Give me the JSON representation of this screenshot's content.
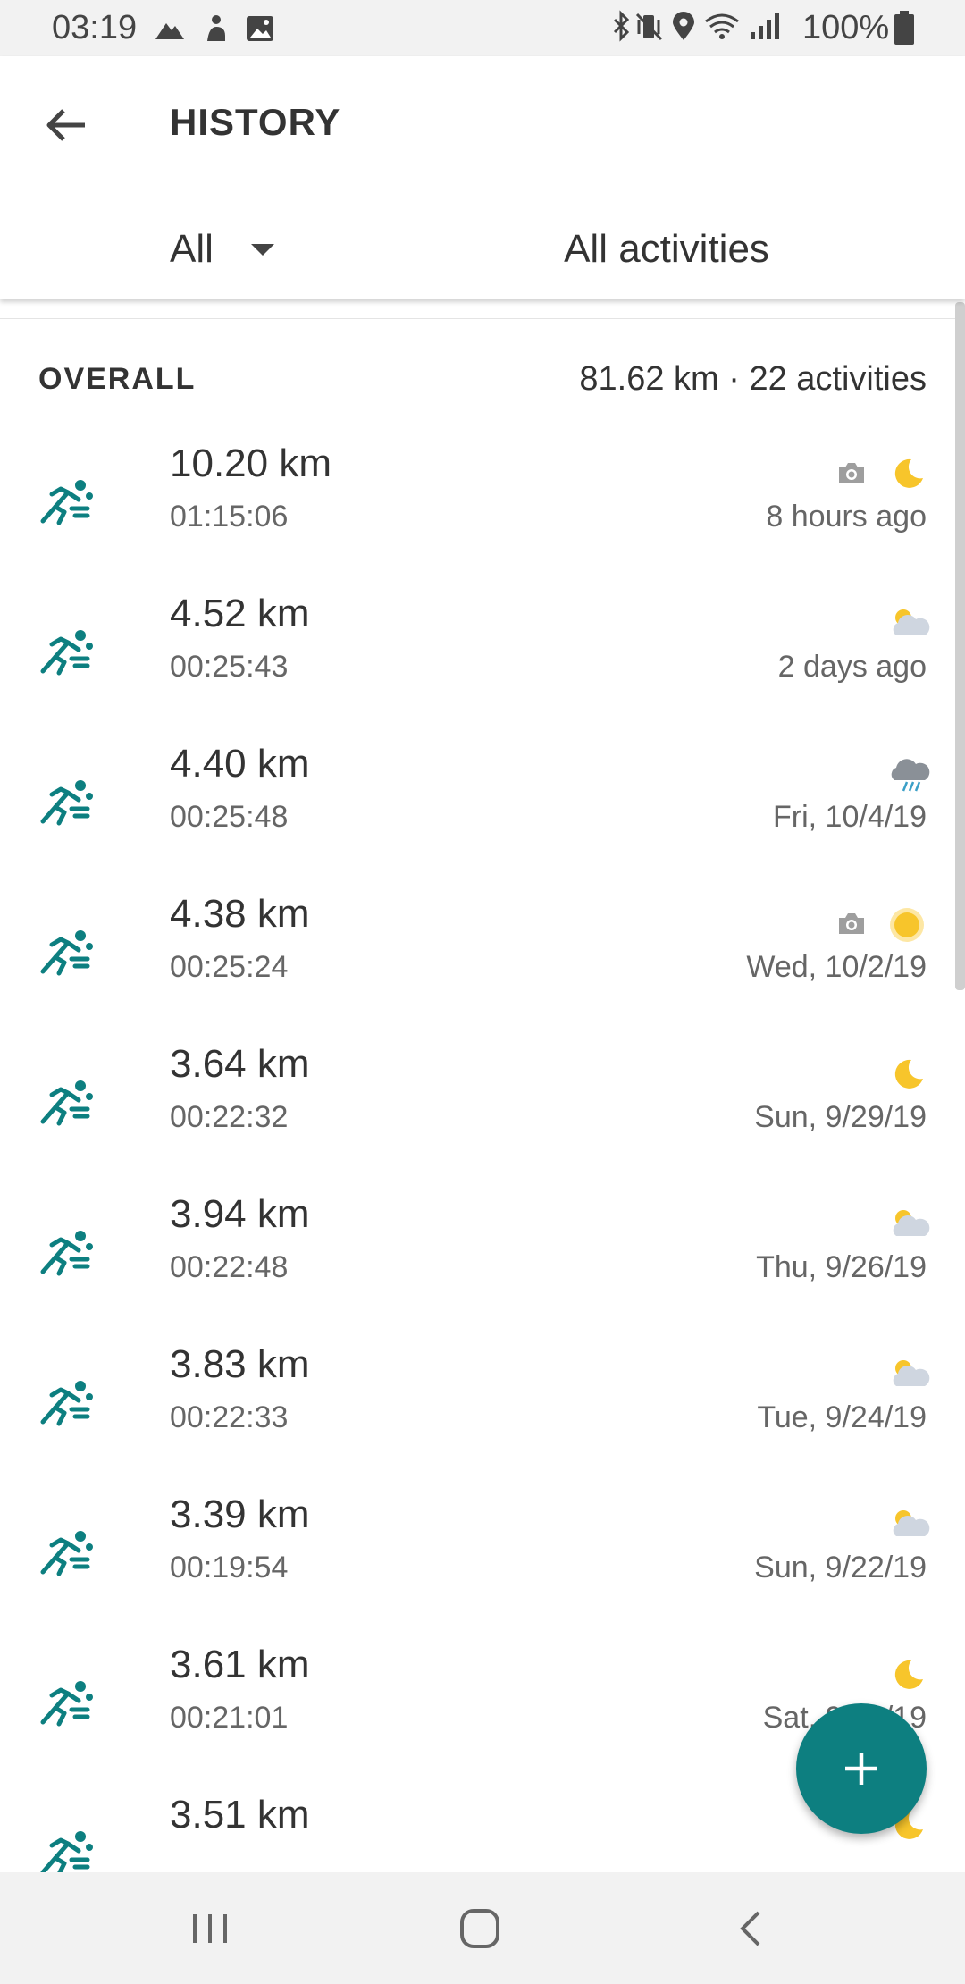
{
  "status_bar": {
    "time": "03:19",
    "battery": "100%",
    "left_icons": [
      "mountain-icon",
      "gesture-icon",
      "image-icon"
    ],
    "right_icons": [
      "bluetooth-icon",
      "vibrate-icon",
      "location-icon",
      "wifi-icon",
      "signal-icon",
      "battery-icon"
    ]
  },
  "header": {
    "title": "HISTORY",
    "back_icon": "arrow-left-icon",
    "period_filter": "All",
    "activity_filter": "All activities"
  },
  "summary": {
    "label": "OVERALL",
    "stats": "81.62 km  ·  22 activities"
  },
  "activities": [
    {
      "distance": "10.20 km",
      "duration": "01:15:06",
      "date": "8 hours ago",
      "camera": true,
      "weather": "moon-icon"
    },
    {
      "distance": "4.52 km",
      "duration": "00:25:43",
      "date": "2 days ago",
      "camera": false,
      "weather": "partly-cloudy-icon"
    },
    {
      "distance": "4.40 km",
      "duration": "00:25:48",
      "date": "Fri, 10/4/19",
      "camera": false,
      "weather": "rain-cloud-icon"
    },
    {
      "distance": "4.38 km",
      "duration": "00:25:24",
      "date": "Wed, 10/2/19",
      "camera": true,
      "weather": "sun-icon"
    },
    {
      "distance": "3.64 km",
      "duration": "00:22:32",
      "date": "Sun, 9/29/19",
      "camera": false,
      "weather": "moon-icon"
    },
    {
      "distance": "3.94 km",
      "duration": "00:22:48",
      "date": "Thu, 9/26/19",
      "camera": false,
      "weather": "partly-cloudy-icon"
    },
    {
      "distance": "3.83 km",
      "duration": "00:22:33",
      "date": "Tue, 9/24/19",
      "camera": false,
      "weather": "partly-cloudy-icon"
    },
    {
      "distance": "3.39 km",
      "duration": "00:19:54",
      "date": "Sun, 9/22/19",
      "camera": false,
      "weather": "partly-cloudy-icon"
    },
    {
      "distance": "3.61 km",
      "duration": "00:21:01",
      "date": "Sat, 9/21/19",
      "camera": false,
      "weather": "moon-icon"
    },
    {
      "distance": "3.51 km",
      "duration": "",
      "date": "",
      "camera": false,
      "weather": "moon-icon"
    }
  ],
  "fab": {
    "icon": "plus-icon"
  },
  "nav_bar": {
    "icons": [
      "recent-apps-icon",
      "home-icon",
      "back-icon"
    ]
  },
  "colors": {
    "accent": "#0d7f80",
    "moon": "#f7c52b",
    "sun": "#f7c52b",
    "cloud": "#cfd6e0",
    "rain_cloud": "#8a9097",
    "camera": "#9e9e9e"
  }
}
